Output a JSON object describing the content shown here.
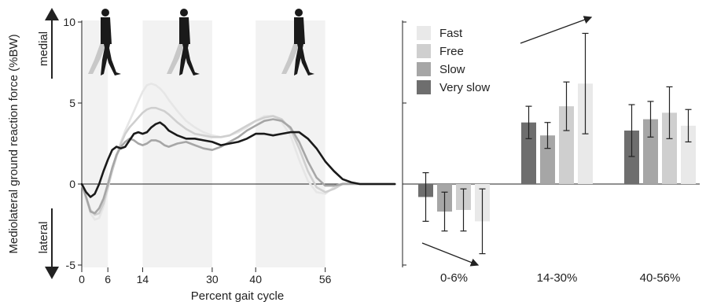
{
  "chart_data": [
    {
      "type": "line",
      "ylabel": "Mediolateral ground reaction force (%BW)",
      "xlabel": "Percent gait cycle",
      "ylim": [
        -5,
        10
      ],
      "xlim": [
        0,
        72
      ],
      "y_ticks": [
        "-5",
        "0",
        "5",
        "10"
      ],
      "x_ticks": [
        "0",
        "6",
        "14",
        "30",
        "40",
        "56"
      ],
      "direction_labels": {
        "up": "medial",
        "down": "lateral"
      },
      "shaded_bands": [
        [
          0,
          6
        ],
        [
          14,
          30
        ],
        [
          40,
          56
        ]
      ],
      "icons": [
        "walking-figure-icon",
        "walking-figure-icon",
        "walking-figure-icon"
      ],
      "series": [
        {
          "name": "Fast",
          "color": "#e6e6e6",
          "x": [
            0,
            1,
            2,
            3,
            4,
            5,
            6,
            7,
            8,
            9,
            10,
            11,
            12,
            13,
            14,
            15,
            16,
            17,
            18,
            19,
            20,
            22,
            24,
            26,
            28,
            30,
            32,
            34,
            36,
            38,
            40,
            42,
            44,
            46,
            48,
            50,
            52,
            54,
            56,
            58,
            60,
            62,
            64,
            66,
            68,
            70,
            72
          ],
          "y": [
            0,
            -0.9,
            -1.8,
            -2.2,
            -2.1,
            -1.4,
            -0.3,
            0.9,
            1.8,
            2.6,
            3.3,
            3.9,
            4.5,
            5.1,
            5.7,
            6.1,
            6.2,
            6.1,
            5.9,
            5.6,
            5.2,
            4.5,
            3.9,
            3.5,
            3.2,
            3.0,
            2.9,
            3.0,
            3.2,
            3.5,
            3.9,
            4.2,
            4.2,
            3.8,
            3.0,
            1.5,
            0.2,
            -0.5,
            -0.6,
            -0.2,
            0.05,
            0.05,
            0,
            0,
            0,
            0,
            0
          ]
        },
        {
          "name": "Free",
          "color": "#cfcfcf",
          "x": [
            0,
            1,
            2,
            3,
            4,
            5,
            6,
            7,
            8,
            9,
            10,
            11,
            12,
            13,
            14,
            15,
            16,
            17,
            18,
            19,
            20,
            22,
            24,
            26,
            28,
            30,
            32,
            34,
            36,
            38,
            40,
            42,
            44,
            46,
            48,
            50,
            52,
            54,
            56,
            58,
            60,
            62,
            64,
            66,
            68,
            70,
            72
          ],
          "y": [
            0,
            -0.8,
            -1.6,
            -1.9,
            -1.8,
            -1.2,
            -0.2,
            0.8,
            1.7,
            2.5,
            3.1,
            3.5,
            3.8,
            4.1,
            4.4,
            4.6,
            4.7,
            4.7,
            4.6,
            4.5,
            4.3,
            3.8,
            3.4,
            3.1,
            3.0,
            2.9,
            2.9,
            3.0,
            3.3,
            3.6,
            3.9,
            4.1,
            4.2,
            4.0,
            3.4,
            2.2,
            0.8,
            -0.2,
            -0.5,
            -0.3,
            0,
            0.05,
            0,
            0,
            0,
            0,
            0
          ]
        },
        {
          "name": "Slow",
          "color": "#a6a6a6",
          "x": [
            0,
            1,
            2,
            3,
            4,
            5,
            6,
            7,
            8,
            9,
            10,
            11,
            12,
            13,
            14,
            15,
            16,
            17,
            18,
            19,
            20,
            22,
            24,
            26,
            28,
            30,
            32,
            34,
            36,
            38,
            40,
            42,
            44,
            46,
            48,
            50,
            52,
            54,
            56,
            58,
            60,
            62,
            64,
            66,
            68,
            70,
            72
          ],
          "y": [
            0,
            -0.8,
            -1.7,
            -1.8,
            -1.5,
            -0.9,
            0,
            1.0,
            1.8,
            2.3,
            2.6,
            2.8,
            2.7,
            2.5,
            2.4,
            2.5,
            2.7,
            2.7,
            2.6,
            2.4,
            2.3,
            2.5,
            2.6,
            2.4,
            2.2,
            2.1,
            2.3,
            2.6,
            2.9,
            3.3,
            3.6,
            3.9,
            4.0,
            3.9,
            3.5,
            2.6,
            1.4,
            0.4,
            -0.1,
            -0.1,
            0,
            0,
            0,
            0,
            0,
            0,
            0
          ]
        },
        {
          "name": "Very slow",
          "color": "#1a1a1a",
          "x": [
            0,
            1,
            2,
            3,
            4,
            5,
            6,
            7,
            8,
            9,
            10,
            11,
            12,
            13,
            14,
            15,
            16,
            17,
            18,
            19,
            20,
            22,
            24,
            26,
            28,
            30,
            32,
            34,
            36,
            38,
            40,
            42,
            44,
            46,
            48,
            50,
            52,
            54,
            56,
            58,
            60,
            62,
            64,
            66,
            68,
            70,
            72
          ],
          "y": [
            0,
            -0.5,
            -0.8,
            -0.6,
            0,
            0.8,
            1.5,
            2.1,
            2.3,
            2.2,
            2.3,
            2.7,
            3.1,
            3.2,
            3.1,
            3.2,
            3.5,
            3.7,
            3.8,
            3.6,
            3.3,
            3.0,
            2.8,
            2.8,
            2.7,
            2.6,
            2.4,
            2.5,
            2.6,
            2.8,
            3.1,
            3.1,
            3.0,
            3.1,
            3.2,
            3.2,
            2.8,
            2.2,
            1.4,
            0.8,
            0.3,
            0.1,
            0,
            0,
            0,
            0,
            0
          ]
        }
      ]
    },
    {
      "type": "bar",
      "ylim": [
        -5,
        10
      ],
      "categories": [
        "0-6%",
        "14-30%",
        "40-56%"
      ],
      "series": [
        {
          "name": "Very slow",
          "color": "#6e6e6e",
          "values": [
            -0.8,
            3.8,
            3.3
          ],
          "err": [
            1.5,
            1.0,
            1.6
          ]
        },
        {
          "name": "Slow",
          "color": "#a6a6a6",
          "values": [
            -1.7,
            3.0,
            4.0
          ],
          "err": [
            1.2,
            0.8,
            1.1
          ]
        },
        {
          "name": "Free",
          "color": "#cfcfcf",
          "values": [
            -1.6,
            4.8,
            4.4
          ],
          "err": [
            1.3,
            1.5,
            1.6
          ]
        },
        {
          "name": "Fast",
          "color": "#e9e9e9",
          "values": [
            -2.3,
            6.2,
            3.6
          ],
          "err": [
            2.0,
            3.1,
            1.0
          ]
        }
      ],
      "legend": {
        "placement": "top-left",
        "order": [
          "Fast",
          "Free",
          "Slow",
          "Very slow"
        ]
      },
      "trend_arrows": [
        "increasing-speed-arrow-up",
        "increasing-speed-arrow-down"
      ]
    }
  ]
}
